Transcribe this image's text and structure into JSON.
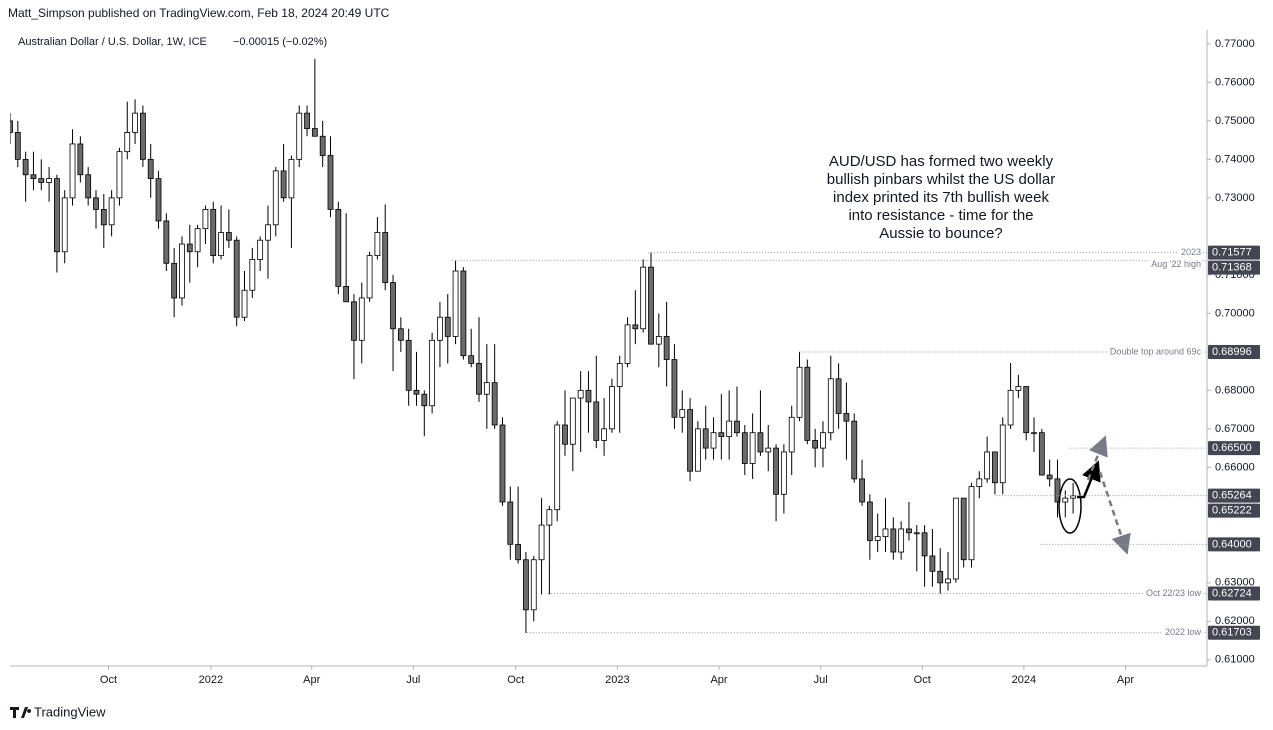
{
  "chart_data": {
    "type": "candlestick",
    "header": "Matt_Simpson published on TradingView.com, Feb 18, 2024 20:49 UTC",
    "title": "Australian Dollar / U.S. Dollar, 1W, ICE",
    "change": "−0.00015 (−0.02%)",
    "annotation": [
      "AUD/USD has formed two weekly",
      "bullish pinbars whilst the US dollar",
      "index printed its 7th bullish week",
      "into resistance - time for the",
      "Aussie to bounce?"
    ],
    "brand": "TradingView",
    "up_color": "#ffffff",
    "down_color": "#6b6b6b",
    "wick_color": "#000000",
    "xlim": [
      0,
      153
    ],
    "xticks": [
      {
        "value": 12.6,
        "label": "Oct"
      },
      {
        "value": 25.7,
        "label": "2022"
      },
      {
        "value": 38.6,
        "label": "Apr"
      },
      {
        "value": 51.6,
        "label": "Jul"
      },
      {
        "value": 64.7,
        "label": "Oct"
      },
      {
        "value": 77.7,
        "label": "2023"
      },
      {
        "value": 90.7,
        "label": "Apr"
      },
      {
        "value": 103.7,
        "label": "Jul"
      },
      {
        "value": 116.7,
        "label": "Oct"
      },
      {
        "value": 129.7,
        "label": "2024"
      },
      {
        "value": 142.7,
        "label": "Apr"
      }
    ],
    "ylim": [
      0.6084,
      0.7736
    ],
    "yticks": [
      {
        "value": 0.77,
        "label": "0.77000"
      },
      {
        "value": 0.76,
        "label": "0.76000"
      },
      {
        "value": 0.75,
        "label": "0.75000"
      },
      {
        "value": 0.74,
        "label": "0.74000"
      },
      {
        "value": 0.73,
        "label": "0.73000"
      },
      {
        "value": 0.71,
        "label": "0.71000"
      },
      {
        "value": 0.7,
        "label": "0.70000"
      },
      {
        "value": 0.68,
        "label": "0.68000"
      },
      {
        "value": 0.67,
        "label": "0.67000"
      },
      {
        "value": 0.66,
        "label": "0.66000"
      },
      {
        "value": 0.63,
        "label": "0.63000"
      },
      {
        "value": 0.62,
        "label": "0.62000"
      },
      {
        "value": 0.61,
        "label": "0.61000"
      }
    ],
    "levels": [
      {
        "value": 0.71577,
        "label": "0.71577",
        "note": "2023",
        "start": 81.6
      },
      {
        "value": 0.71368,
        "label": "0.71368",
        "note": "Aug '22 high",
        "start": 56.5
      },
      {
        "value": 0.68996,
        "label": "0.68996",
        "note": "Double top around 69c",
        "start": 101
      },
      {
        "value": 0.665,
        "label": "0.66500",
        "start": 135.4
      },
      {
        "value": 0.65264,
        "label": "0.65264",
        "start": 126.1
      },
      {
        "value": 0.65222,
        "label": "0.65222"
      },
      {
        "value": 0.64,
        "label": "0.64000",
        "start": 131.8
      },
      {
        "value": 0.62724,
        "label": "0.62724",
        "note": "Oct 22/23 low",
        "start": 68.8
      },
      {
        "value": 0.61703,
        "label": "0.61703",
        "note": "2022 low",
        "start": 66.1
      }
    ],
    "open": [
      0.75,
      0.747,
      0.74,
      0.736,
      0.735,
      0.734,
      0.735,
      0.716,
      0.73,
      0.744,
      0.736,
      0.73,
      0.727,
      0.723,
      0.73,
      0.742,
      0.747,
      0.752,
      0.74,
      0.735,
      0.724,
      0.713,
      0.704,
      0.718,
      0.716,
      0.722,
      0.727,
      0.715,
      0.721,
      0.719,
      0.699,
      0.706,
      0.714,
      0.719,
      0.723,
      0.737,
      0.73,
      0.74,
      0.752,
      0.748,
      0.746,
      0.741,
      0.727,
      0.707,
      0.703,
      0.693,
      0.704,
      0.715,
      0.721,
      0.708,
      0.696,
      0.693,
      0.68,
      0.679,
      0.676,
      0.693,
      0.699,
      0.694,
      0.711,
      0.689,
      0.687,
      0.679,
      0.682,
      0.671,
      0.651,
      0.64,
      0.636,
      0.623,
      0.636,
      0.645,
      0.649,
      0.671,
      0.666,
      0.678,
      0.68,
      0.677,
      0.667,
      0.67,
      0.681,
      0.687,
      0.697,
      0.696,
      0.712,
      0.692,
      0.694,
      0.688,
      0.673,
      0.675,
      0.659,
      0.67,
      0.665,
      0.669,
      0.668,
      0.672,
      0.669,
      0.661,
      0.669,
      0.664,
      0.665,
      0.653,
      0.664,
      0.673,
      0.686,
      0.667,
      0.665,
      0.669,
      0.683,
      0.674,
      0.672,
      0.657,
      0.651,
      0.641,
      0.642,
      0.644,
      0.638,
      0.644,
      0.643,
      0.643,
      0.637,
      0.633,
      0.63,
      0.631,
      0.652,
      0.636,
      0.655,
      0.657,
      0.664,
      0.656,
      0.671,
      0.68,
      0.681,
      0.669,
      0.669,
      0.658,
      0.657,
      0.651,
      0.652
    ],
    "high": [
      0.752,
      0.75,
      0.742,
      0.742,
      0.74,
      0.738,
      0.736,
      0.732,
      0.7478,
      0.746,
      0.738,
      0.732,
      0.731,
      0.732,
      0.743,
      0.755,
      0.7556,
      0.754,
      0.744,
      0.737,
      0.726,
      0.717,
      0.72,
      0.723,
      0.723,
      0.728,
      0.729,
      0.728,
      0.727,
      0.72,
      0.711,
      0.717,
      0.72,
      0.728,
      0.738,
      0.744,
      0.741,
      0.754,
      0.754,
      0.7661,
      0.75,
      0.746,
      0.729,
      0.726,
      0.705,
      0.708,
      0.716,
      0.725,
      0.7283,
      0.71,
      0.699,
      0.696,
      0.69,
      0.68,
      0.695,
      0.703,
      0.705,
      0.7137,
      0.712,
      0.696,
      0.699,
      0.692,
      0.692,
      0.673,
      0.655,
      0.655,
      0.638,
      0.637,
      0.652,
      0.65,
      0.672,
      0.68,
      0.678,
      0.685,
      0.685,
      0.689,
      0.678,
      0.683,
      0.689,
      0.699,
      0.706,
      0.714,
      0.7158,
      0.7,
      0.703,
      0.692,
      0.68,
      0.678,
      0.672,
      0.676,
      0.673,
      0.679,
      0.68,
      0.681,
      0.671,
      0.674,
      0.68,
      0.671,
      0.666,
      0.666,
      0.676,
      0.69,
      0.688,
      0.67,
      0.672,
      0.689,
      0.687,
      0.682,
      0.674,
      0.662,
      0.653,
      0.648,
      0.652,
      0.647,
      0.646,
      0.651,
      0.645,
      0.645,
      0.644,
      0.639,
      0.638,
      0.652,
      0.652,
      0.656,
      0.659,
      0.668,
      0.664,
      0.673,
      0.6871,
      0.684,
      0.681,
      0.673,
      0.67,
      0.662,
      0.662,
      0.654,
      0.656
    ],
    "low": [
      0.744,
      0.738,
      0.729,
      0.732,
      0.732,
      0.729,
      0.7106,
      0.713,
      0.728,
      0.734,
      0.728,
      0.722,
      0.717,
      0.72,
      0.728,
      0.74,
      0.744,
      0.738,
      0.73,
      0.722,
      0.711,
      0.699,
      0.702,
      0.708,
      0.712,
      0.718,
      0.713,
      0.714,
      0.717,
      0.6967,
      0.698,
      0.704,
      0.711,
      0.709,
      0.72,
      0.729,
      0.717,
      0.738,
      0.746,
      0.746,
      0.738,
      0.725,
      0.705,
      0.703,
      0.6829,
      0.687,
      0.703,
      0.714,
      0.706,
      0.685,
      0.69,
      0.676,
      0.676,
      0.6681,
      0.674,
      0.686,
      0.687,
      0.692,
      0.688,
      0.686,
      0.677,
      0.67,
      0.67,
      0.65,
      0.636,
      0.635,
      0.617,
      0.62,
      0.627,
      0.627,
      0.646,
      0.663,
      0.659,
      0.664,
      0.669,
      0.665,
      0.663,
      0.669,
      0.669,
      0.686,
      0.692,
      0.695,
      0.692,
      0.686,
      0.681,
      0.67,
      0.669,
      0.6564,
      0.659,
      0.662,
      0.662,
      0.662,
      0.662,
      0.668,
      0.658,
      0.657,
      0.663,
      0.659,
      0.646,
      0.648,
      0.658,
      0.672,
      0.666,
      0.66,
      0.66,
      0.667,
      0.67,
      0.662,
      0.656,
      0.65,
      0.636,
      0.638,
      0.638,
      0.636,
      0.636,
      0.641,
      0.633,
      0.629,
      0.629,
      0.6272,
      0.628,
      0.63,
      0.634,
      0.634,
      0.652,
      0.656,
      0.653,
      0.653,
      0.67,
      0.678,
      0.667,
      0.664,
      0.658,
      0.655,
      0.647,
      0.647,
      0.648
    ],
    "close": [
      0.747,
      0.74,
      0.736,
      0.735,
      0.734,
      0.735,
      0.716,
      0.73,
      0.744,
      0.736,
      0.73,
      0.727,
      0.723,
      0.73,
      0.742,
      0.747,
      0.752,
      0.74,
      0.735,
      0.724,
      0.713,
      0.704,
      0.718,
      0.716,
      0.722,
      0.727,
      0.715,
      0.721,
      0.719,
      0.699,
      0.706,
      0.714,
      0.719,
      0.723,
      0.737,
      0.73,
      0.74,
      0.752,
      0.748,
      0.746,
      0.741,
      0.727,
      0.707,
      0.703,
      0.693,
      0.704,
      0.715,
      0.721,
      0.708,
      0.696,
      0.693,
      0.68,
      0.679,
      0.676,
      0.693,
      0.699,
      0.694,
      0.711,
      0.689,
      0.687,
      0.679,
      0.682,
      0.671,
      0.651,
      0.64,
      0.636,
      0.623,
      0.636,
      0.645,
      0.649,
      0.671,
      0.666,
      0.678,
      0.68,
      0.677,
      0.667,
      0.67,
      0.681,
      0.687,
      0.697,
      0.696,
      0.712,
      0.692,
      0.694,
      0.688,
      0.673,
      0.675,
      0.659,
      0.67,
      0.665,
      0.669,
      0.668,
      0.672,
      0.669,
      0.661,
      0.669,
      0.664,
      0.665,
      0.653,
      0.664,
      0.673,
      0.686,
      0.667,
      0.665,
      0.669,
      0.683,
      0.674,
      0.672,
      0.657,
      0.651,
      0.641,
      0.642,
      0.644,
      0.638,
      0.644,
      0.643,
      0.643,
      0.637,
      0.633,
      0.63,
      0.631,
      0.652,
      0.636,
      0.655,
      0.657,
      0.664,
      0.656,
      0.671,
      0.68,
      0.681,
      0.669,
      0.669,
      0.658,
      0.657,
      0.651,
      0.652,
      0.6526
    ]
  }
}
